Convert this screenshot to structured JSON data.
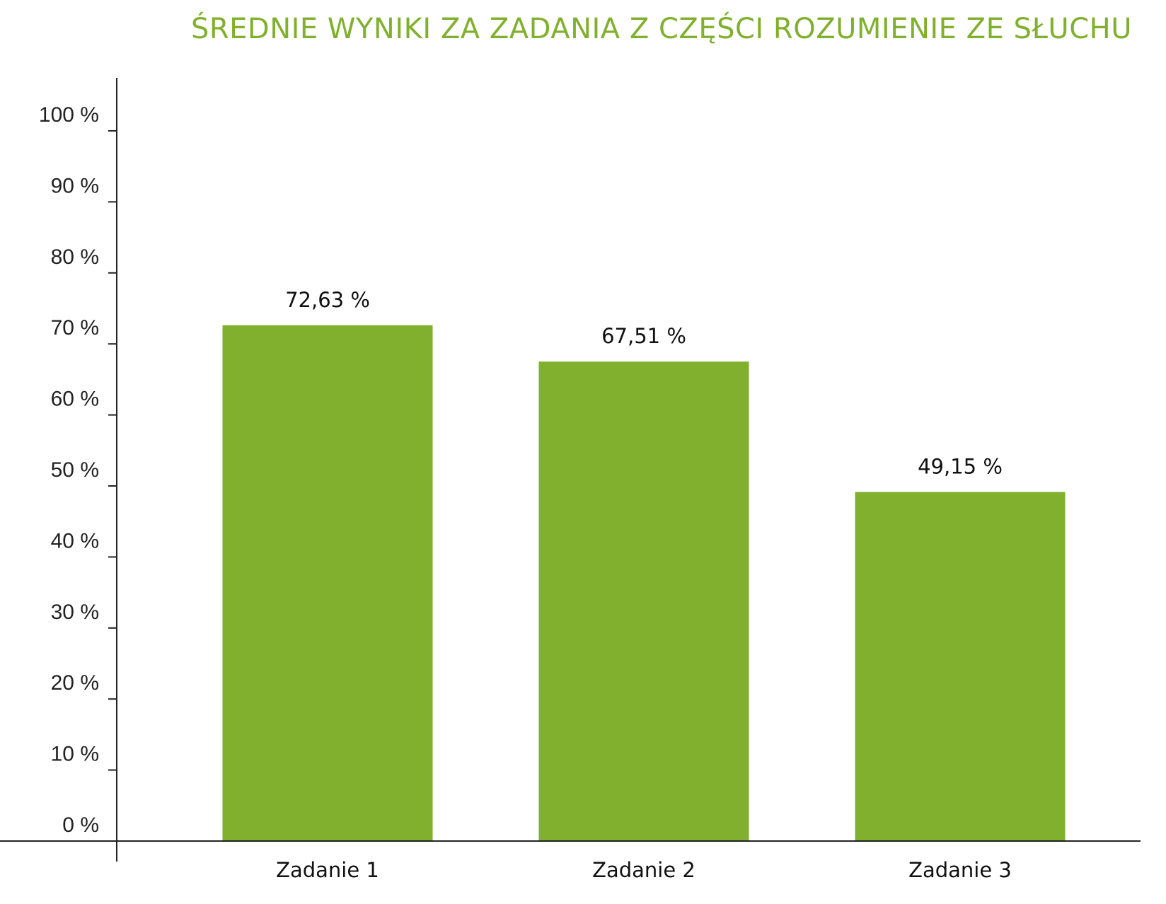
{
  "chart_data": {
    "type": "bar",
    "title": "ŚREDNIE WYNIKI ZA ZADANIA Z CZĘŚCI ROZUMIENIE ZE SŁUCHU",
    "categories": [
      "Zadanie 1",
      "Zadanie 2",
      "Zadanie 3"
    ],
    "values": [
      72.63,
      67.51,
      49.15
    ],
    "value_labels": [
      "72,63 %",
      "67,51 %",
      "49,15 %"
    ],
    "y_ticks": [
      0,
      10,
      20,
      30,
      40,
      50,
      60,
      70,
      80,
      90,
      100
    ],
    "y_tick_labels": [
      "0 %",
      "10 %",
      "20 %",
      "30 %",
      "40 %",
      "50 %",
      "60 %",
      "70 %",
      "80 %",
      "90 %",
      "100 %"
    ],
    "ylim": [
      0,
      100
    ],
    "grid": false,
    "xlabel": "",
    "ylabel": ""
  },
  "colors": {
    "bar": "#80b02d",
    "title": "#80b02d",
    "axis": "#222222"
  }
}
